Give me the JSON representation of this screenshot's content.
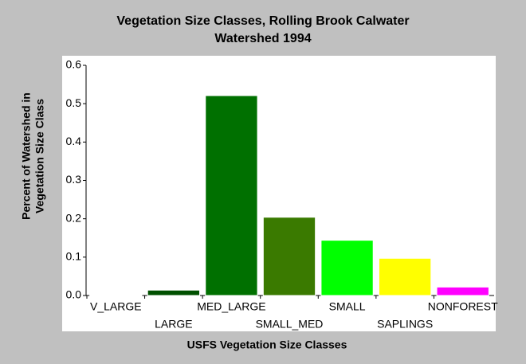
{
  "chart_data": {
    "type": "bar",
    "title": [
      "Vegetation Size Classes, Rolling Brook Calwater",
      "Watershed 1994"
    ],
    "x_label": "USFS Vegetation Size Classes",
    "y_label": [
      "Percent of Watershed in",
      "Vegetation Size Class"
    ],
    "categories": [
      "V_LARGE",
      "LARGE",
      "MED_LARGE",
      "SMALL_MED",
      "SMALL",
      "SAPLINGS",
      "NONFOREST"
    ],
    "values": [
      0.002,
      0.014,
      0.521,
      0.204,
      0.144,
      0.097,
      0.022
    ],
    "colors": [
      "#800080",
      "#005000",
      "#007000",
      "#3a7a00",
      "#00ff00",
      "#ffff00",
      "#ff00ff"
    ],
    "ylim": [
      0,
      0.6
    ],
    "yticks": [
      {
        "value": 0,
        "label": "0.0"
      },
      0.1,
      0.2,
      0.3,
      0.4,
      0.5,
      0.6
    ]
  }
}
